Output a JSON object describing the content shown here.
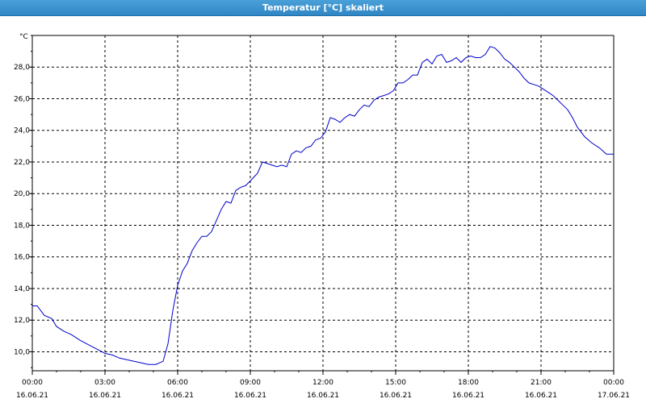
{
  "window": {
    "title": "Temperatur [°C] skaliert"
  },
  "chart_data": {
    "type": "line",
    "title": "Temperatur [°C] skaliert",
    "ylabel": "°C",
    "xlabel": "",
    "x_unit": "hours since 16.06.21 00:00",
    "xlim": [
      0,
      24
    ],
    "ylim": [
      8.8,
      30.0
    ],
    "grid": true,
    "line_color": "#0000cc",
    "y_ticks": [
      "10,0",
      "12,0",
      "14,0",
      "16,0",
      "18,0",
      "20,0",
      "22,0",
      "24,0",
      "26,0",
      "28,0"
    ],
    "y_tick_values": [
      10,
      12,
      14,
      16,
      18,
      20,
      22,
      24,
      26,
      28
    ],
    "x_ticks": [
      {
        "value": 0,
        "time": "00:00",
        "date": "16.06.21"
      },
      {
        "value": 3,
        "time": "03:00",
        "date": "16.06.21"
      },
      {
        "value": 6,
        "time": "06:00",
        "date": "16.06.21"
      },
      {
        "value": 9,
        "time": "09:00",
        "date": "16.06.21"
      },
      {
        "value": 12,
        "time": "12:00",
        "date": "16.06.21"
      },
      {
        "value": 15,
        "time": "15:00",
        "date": "16.06.21"
      },
      {
        "value": 18,
        "time": "18:00",
        "date": "16.06.21"
      },
      {
        "value": 21,
        "time": "21:00",
        "date": "16.06.21"
      },
      {
        "value": 24,
        "time": "00:00",
        "date": "17.06.21"
      }
    ],
    "series": [
      {
        "x": [
          0,
          0.2,
          0.5,
          0.8,
          1.0,
          1.3,
          1.6,
          2.0,
          2.5,
          3.0,
          3.3,
          3.6,
          3.9,
          4.2,
          4.5,
          4.8,
          5.1,
          5.4,
          5.6,
          5.8,
          6.0,
          6.2,
          6.4,
          6.6,
          6.8,
          7.0,
          7.2,
          7.4,
          7.6,
          7.8,
          8.0,
          8.2,
          8.4,
          8.6,
          8.8,
          9.0,
          9.3,
          9.5,
          9.7,
          9.9,
          10.1,
          10.3,
          10.5,
          10.7,
          10.9,
          11.1,
          11.3,
          11.5,
          11.7,
          11.9,
          12.1,
          12.3,
          12.5,
          12.7,
          12.9,
          13.1,
          13.3,
          13.5,
          13.7,
          13.9,
          14.1,
          14.3,
          14.5,
          14.7,
          14.9,
          15.1,
          15.3,
          15.5,
          15.7,
          15.9,
          16.1,
          16.3,
          16.5,
          16.7,
          16.9,
          17.1,
          17.3,
          17.5,
          17.7,
          17.9,
          18.1,
          18.3,
          18.5,
          18.7,
          18.9,
          19.1,
          19.3,
          19.5,
          19.7,
          19.9,
          20.1,
          20.3,
          20.5,
          20.7,
          20.9,
          21.1,
          21.3,
          21.5,
          21.7,
          21.9,
          22.1,
          22.3,
          22.5,
          22.8,
          23.1,
          23.4,
          23.7,
          24.0
        ],
        "y": [
          12.9,
          12.9,
          12.3,
          12.1,
          11.6,
          11.3,
          11.1,
          10.7,
          10.3,
          9.9,
          9.8,
          9.6,
          9.5,
          9.4,
          9.3,
          9.2,
          9.2,
          9.4,
          10.5,
          12.6,
          14.2,
          15.1,
          15.6,
          16.4,
          16.9,
          17.3,
          17.3,
          17.6,
          18.3,
          19.0,
          19.5,
          19.4,
          20.2,
          20.4,
          20.5,
          20.8,
          21.3,
          22.0,
          21.9,
          21.8,
          21.7,
          21.8,
          21.7,
          22.5,
          22.7,
          22.6,
          22.9,
          23.0,
          23.4,
          23.5,
          23.9,
          24.8,
          24.7,
          24.5,
          24.8,
          25.0,
          24.9,
          25.3,
          25.6,
          25.5,
          25.9,
          26.1,
          26.2,
          26.3,
          26.5,
          27.0,
          27.0,
          27.2,
          27.5,
          27.5,
          28.3,
          28.5,
          28.2,
          28.7,
          28.8,
          28.3,
          28.4,
          28.6,
          28.3,
          28.6,
          28.7,
          28.6,
          28.6,
          28.8,
          29.3,
          29.2,
          28.9,
          28.5,
          28.3,
          28.0,
          27.7,
          27.3,
          27.0,
          26.9,
          26.8,
          26.6,
          26.4,
          26.2,
          25.9,
          25.6,
          25.3,
          24.8,
          24.2,
          23.6,
          23.2,
          22.9,
          22.5,
          22.5
        ]
      }
    ]
  }
}
